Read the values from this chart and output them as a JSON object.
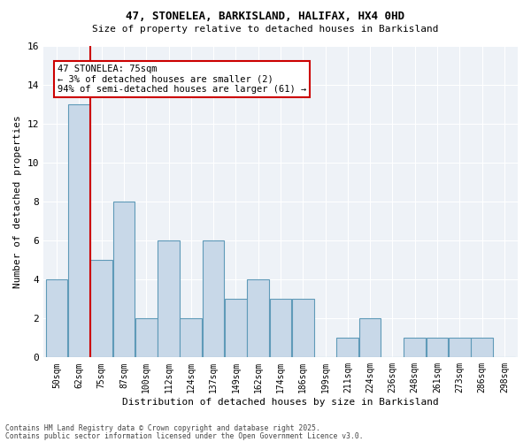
{
  "title1": "47, STONELEA, BARKISLAND, HALIFAX, HX4 0HD",
  "title2": "Size of property relative to detached houses in Barkisland",
  "xlabel": "Distribution of detached houses by size in Barkisland",
  "ylabel": "Number of detached properties",
  "bins": [
    "50sqm",
    "62sqm",
    "75sqm",
    "87sqm",
    "100sqm",
    "112sqm",
    "124sqm",
    "137sqm",
    "149sqm",
    "162sqm",
    "174sqm",
    "186sqm",
    "199sqm",
    "211sqm",
    "224sqm",
    "236sqm",
    "248sqm",
    "261sqm",
    "273sqm",
    "286sqm",
    "298sqm"
  ],
  "counts": [
    4,
    13,
    5,
    8,
    2,
    6,
    2,
    6,
    3,
    4,
    3,
    3,
    0,
    1,
    2,
    0,
    1,
    1,
    1,
    1,
    0
  ],
  "bar_color": "#c8d8e8",
  "bar_edge_color": "#5f9ab8",
  "highlight_bar_index": 2,
  "highlight_color": "#cc0000",
  "annotation_text": "47 STONELEA: 75sqm\n← 3% of detached houses are smaller (2)\n94% of semi-detached houses are larger (61) →",
  "annotation_box_color": "#ffffff",
  "annotation_box_edge": "#cc0000",
  "footer1": "Contains HM Land Registry data © Crown copyright and database right 2025.",
  "footer2": "Contains public sector information licensed under the Open Government Licence v3.0.",
  "bg_color": "#eef2f7",
  "ylim": [
    0,
    16
  ],
  "yticks": [
    0,
    2,
    4,
    6,
    8,
    10,
    12,
    14,
    16
  ]
}
